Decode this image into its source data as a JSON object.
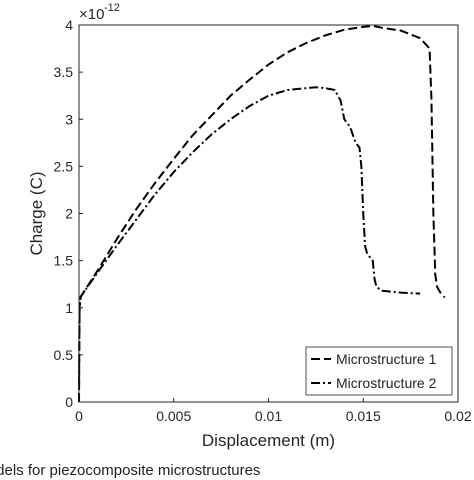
{
  "chart_data": {
    "type": "line",
    "xlabel": "Displacement (m)",
    "ylabel": "Charge (C)",
    "y_exponent_label": "×10",
    "y_exponent_power": "-12",
    "xlim": [
      0,
      0.02
    ],
    "ylim": [
      0,
      4
    ],
    "x_ticks": [
      0,
      0.005,
      0.01,
      0.015,
      0.02
    ],
    "x_tick_labels": [
      "0",
      "0.005",
      "0.01",
      "0.015",
      "0.02"
    ],
    "y_ticks": [
      0,
      0.5,
      1,
      1.5,
      2,
      2.5,
      3,
      3.5,
      4
    ],
    "y_tick_labels": [
      "0",
      "0.5",
      "1",
      "1.5",
      "2",
      "2.5",
      "3",
      "3.5",
      "4"
    ],
    "grid": false,
    "legend_position": "bottom-right",
    "series": [
      {
        "name": "Microstructure 1",
        "style": "dashed",
        "color": "#000000",
        "x": [
          0,
          1e-05,
          2e-05,
          4e-05,
          0.0001,
          0.001,
          0.002,
          0.003,
          0.004,
          0.005,
          0.006,
          0.007,
          0.008,
          0.009,
          0.01,
          0.011,
          0.012,
          0.013,
          0.014,
          0.015,
          0.0155,
          0.016,
          0.017,
          0.018,
          0.0185,
          0.0186,
          0.0187,
          0.0188,
          0.0189,
          0.0191,
          0.0193
        ],
        "y": [
          0,
          0.4,
          0.8,
          1.1,
          1.12,
          1.4,
          1.73,
          2.04,
          2.32,
          2.58,
          2.83,
          3.04,
          3.25,
          3.42,
          3.58,
          3.71,
          3.81,
          3.89,
          3.95,
          3.98,
          3.99,
          3.97,
          3.94,
          3.86,
          3.75,
          3.2,
          2.0,
          1.35,
          1.22,
          1.15,
          1.11
        ]
      },
      {
        "name": "Microstructure 2",
        "style": "dash-dot",
        "color": "#000000",
        "x": [
          0,
          1e-05,
          3e-05,
          0.0001,
          0.001,
          0.002,
          0.003,
          0.004,
          0.005,
          0.006,
          0.007,
          0.008,
          0.009,
          0.01,
          0.011,
          0.012,
          0.0125,
          0.013,
          0.0135,
          0.0138,
          0.014,
          0.0143,
          0.0146,
          0.0148,
          0.0149,
          0.015,
          0.0151,
          0.0152,
          0.0153,
          0.0155,
          0.0156,
          0.0157,
          0.016,
          0.017,
          0.018
        ],
        "y": [
          0,
          0.5,
          1.0,
          1.12,
          1.38,
          1.66,
          1.93,
          2.2,
          2.44,
          2.65,
          2.84,
          3.0,
          3.14,
          3.25,
          3.31,
          3.33,
          3.34,
          3.33,
          3.31,
          3.2,
          3.0,
          2.92,
          2.75,
          2.7,
          2.5,
          2.0,
          1.65,
          1.58,
          1.55,
          1.5,
          1.3,
          1.22,
          1.18,
          1.16,
          1.15
        ]
      }
    ]
  },
  "caption_text": "ıdels for piezocomposite microstructures"
}
